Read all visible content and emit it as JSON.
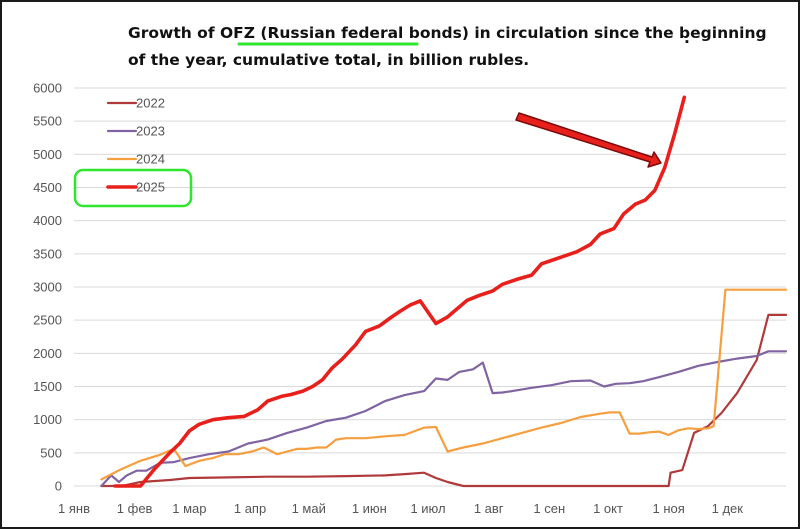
{
  "chart_data": {
    "type": "line",
    "title_line1_pre": "Growth of OFZ ",
    "title_line1_highlight": "(Russian federal bonds)",
    "title_line1_post": " in circulation since the beginning",
    "title_line2": "of the year, cumulative total, in billion rubles.",
    "title_stray_mark": ".",
    "xlabel": "",
    "ylabel": "",
    "ylim": [
      0,
      6000
    ],
    "xlim": [
      1,
      365
    ],
    "grid": true,
    "yticks": [
      0,
      500,
      1000,
      1500,
      2000,
      2500,
      3000,
      3500,
      4000,
      4500,
      5000,
      5500,
      6000
    ],
    "xticks": [
      {
        "label": "1 янв",
        "day": 1
      },
      {
        "label": "1 фев",
        "day": 32
      },
      {
        "label": "1 мар",
        "day": 60
      },
      {
        "label": "1 апр",
        "day": 91
      },
      {
        "label": "1 май",
        "day": 121
      },
      {
        "label": "1 июн",
        "day": 152
      },
      {
        "label": "1 июл",
        "day": 182
      },
      {
        "label": "1 авг",
        "day": 213
      },
      {
        "label": "1 сен",
        "day": 244
      },
      {
        "label": "1 окт",
        "day": 274
      },
      {
        "label": "1 ноя",
        "day": 305
      },
      {
        "label": "1 дек",
        "day": 335
      }
    ],
    "legend_position": "top-left",
    "highlight_series": "2025",
    "colors": {
      "2022": "#b03a3a",
      "2023": "#8064a2",
      "2024": "#f59f3f",
      "2025": "#e8201c",
      "highlight_box": "#2ee62e",
      "arrow": "#e8201c",
      "grid": "#d9d9d9"
    },
    "series": [
      {
        "name": "2022",
        "x": [
          15,
          22,
          27,
          35,
          50,
          60,
          80,
          100,
          120,
          140,
          160,
          170,
          180,
          186,
          192,
          200,
          205,
          305,
          306,
          312,
          318,
          325,
          332,
          340,
          350,
          356,
          365
        ],
        "values": [
          0,
          0,
          10,
          60,
          90,
          120,
          130,
          140,
          140,
          150,
          160,
          180,
          200,
          120,
          60,
          0,
          0,
          0,
          200,
          240,
          800,
          900,
          1100,
          1400,
          1900,
          2580,
          2580
        ]
      },
      {
        "name": "2023",
        "x": [
          15,
          20,
          24,
          28,
          33,
          38,
          45,
          52,
          60,
          70,
          80,
          90,
          100,
          110,
          120,
          130,
          140,
          150,
          160,
          170,
          180,
          186,
          192,
          198,
          205,
          210,
          215,
          220,
          225,
          235,
          245,
          255,
          265,
          272,
          278,
          285,
          292,
          300,
          310,
          320,
          330,
          340,
          350,
          356,
          365
        ],
        "values": [
          0,
          160,
          60,
          160,
          230,
          230,
          350,
          360,
          420,
          480,
          520,
          640,
          700,
          800,
          880,
          980,
          1030,
          1130,
          1280,
          1370,
          1430,
          1620,
          1600,
          1720,
          1760,
          1860,
          1400,
          1410,
          1430,
          1480,
          1520,
          1580,
          1590,
          1500,
          1540,
          1550,
          1580,
          1640,
          1720,
          1810,
          1870,
          1920,
          1960,
          2030,
          2030
        ]
      },
      {
        "name": "2024",
        "x": [
          15,
          25,
          35,
          45,
          52,
          58,
          65,
          72,
          78,
          85,
          92,
          98,
          105,
          110,
          115,
          120,
          125,
          130,
          135,
          140,
          150,
          160,
          170,
          180,
          186,
          192,
          200,
          210,
          220,
          230,
          240,
          250,
          260,
          270,
          275,
          280,
          285,
          290,
          295,
          300,
          305,
          310,
          315,
          320,
          325,
          328,
          334,
          344,
          355,
          365
        ],
        "values": [
          100,
          250,
          380,
          470,
          560,
          300,
          380,
          420,
          480,
          480,
          520,
          580,
          480,
          520,
          560,
          560,
          580,
          580,
          700,
          720,
          720,
          750,
          770,
          880,
          890,
          520,
          580,
          640,
          720,
          800,
          880,
          950,
          1040,
          1090,
          1110,
          1110,
          790,
          790,
          810,
          820,
          770,
          840,
          870,
          860,
          870,
          900,
          2960,
          2960,
          2960,
          2960
        ]
      },
      {
        "name": "2025",
        "x": [
          22,
          35,
          42,
          50,
          55,
          60,
          65,
          72,
          80,
          88,
          95,
          100,
          107,
          112,
          118,
          123,
          128,
          133,
          138,
          145,
          150,
          157,
          163,
          168,
          173,
          178,
          186,
          192,
          196,
          202,
          208,
          215,
          220,
          228,
          235,
          240,
          245,
          252,
          258,
          265,
          270,
          277,
          282,
          288,
          293,
          298,
          303,
          308,
          313
        ],
        "values": [
          0,
          0,
          250,
          500,
          640,
          830,
          930,
          1000,
          1030,
          1050,
          1150,
          1280,
          1350,
          1380,
          1430,
          1500,
          1600,
          1780,
          1910,
          2130,
          2330,
          2410,
          2540,
          2640,
          2730,
          2790,
          2450,
          2550,
          2650,
          2800,
          2870,
          2940,
          3040,
          3120,
          3180,
          3350,
          3400,
          3470,
          3530,
          3640,
          3800,
          3880,
          4100,
          4250,
          4310,
          4460,
          4800,
          5300,
          5860
        ]
      }
    ]
  }
}
